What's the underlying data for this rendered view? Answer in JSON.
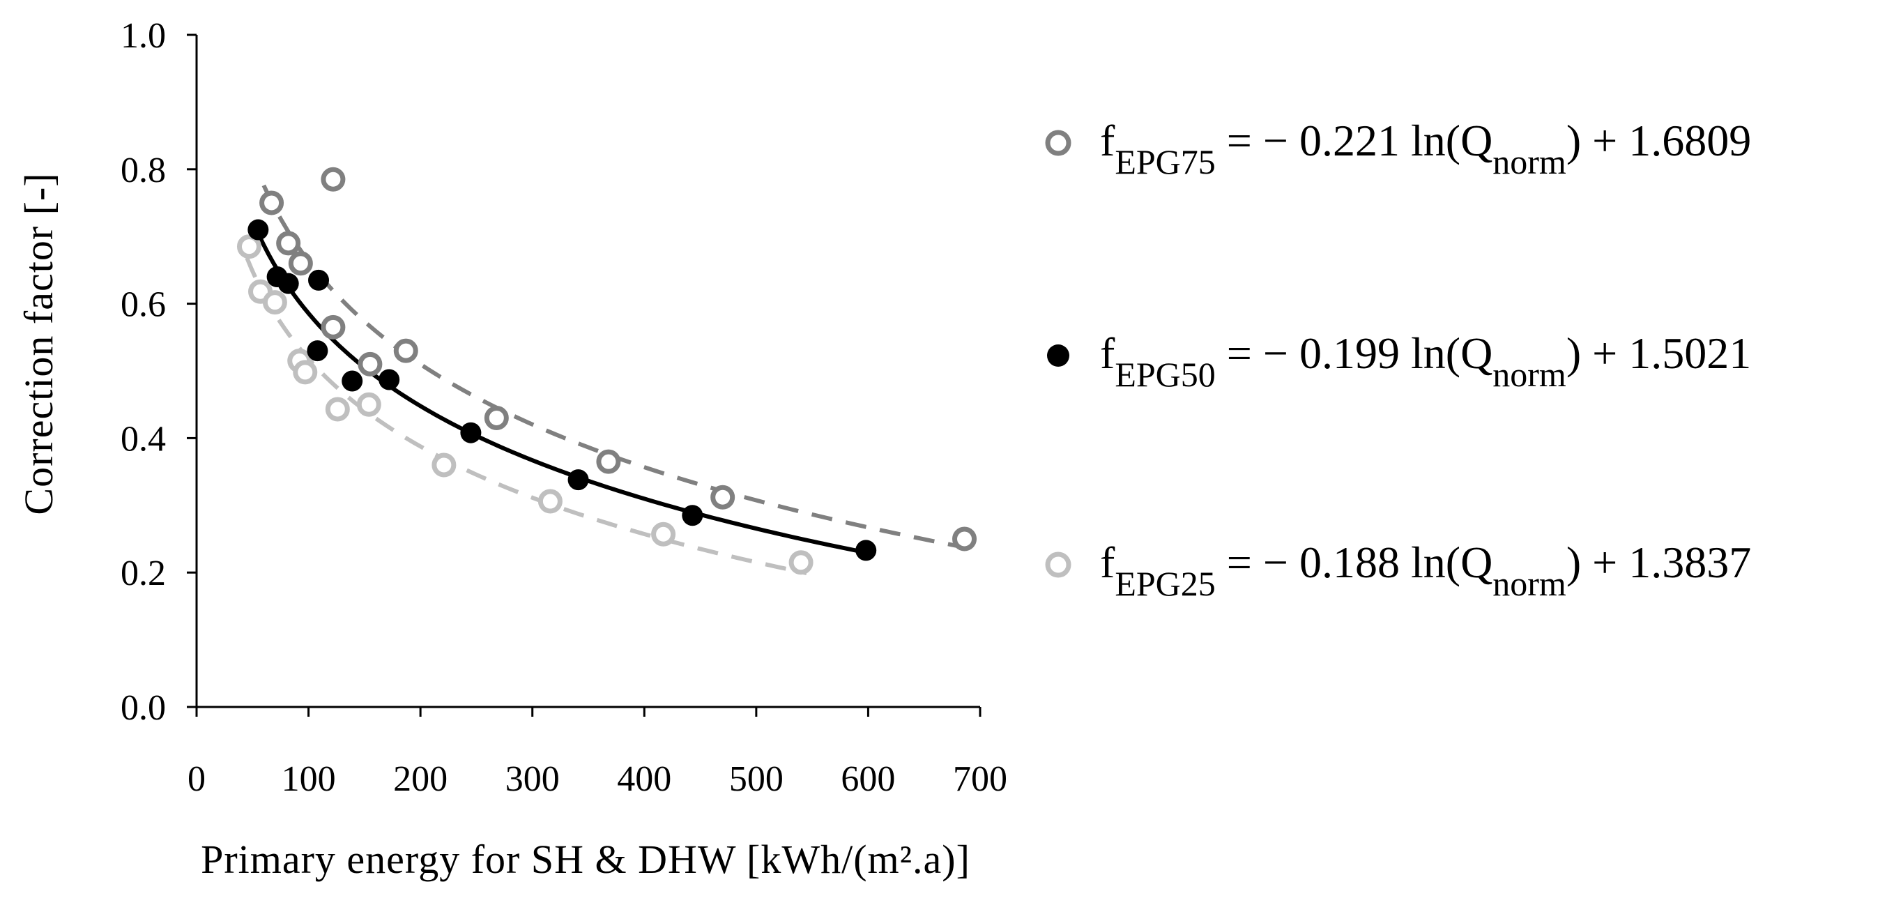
{
  "chart_data": {
    "type": "scatter",
    "xlabel": "Primary energy for SH & DHW [kWh/(m².a)]",
    "ylabel": "Correction factor [-]",
    "xlim": [
      0,
      700
    ],
    "ylim": [
      0,
      1.0
    ],
    "x_ticks": [
      "0",
      "100",
      "200",
      "300",
      "400",
      "500",
      "600",
      "700"
    ],
    "y_ticks": [
      "0.0",
      "0.2",
      "0.4",
      "0.6",
      "0.8",
      "1.0"
    ],
    "grid": false,
    "legend_position": "right",
    "series": [
      {
        "name": "EPG75",
        "marker": "open-circle",
        "color": "#808080",
        "line_style": "dashed",
        "fit": {
          "a": -0.221,
          "b": 1.6809,
          "x_range": [
            60,
            690
          ]
        },
        "legend": {
          "prefix": "f",
          "subscript": "EPG75",
          "mid": " = − 0.221 ln(Q",
          "mid_sub": "norm",
          "suffix": ") + 1.6809"
        },
        "points": [
          [
            67,
            0.75
          ],
          [
            122,
            0.785
          ],
          [
            82,
            0.69
          ],
          [
            93,
            0.66
          ],
          [
            122,
            0.565
          ],
          [
            155,
            0.51
          ],
          [
            187,
            0.53
          ],
          [
            268,
            0.43
          ],
          [
            368,
            0.365
          ],
          [
            470,
            0.312
          ],
          [
            686,
            0.25
          ]
        ]
      },
      {
        "name": "EPG50",
        "marker": "filled-circle",
        "color": "#000000",
        "line_style": "solid",
        "fit": {
          "a": -0.199,
          "b": 1.5021,
          "x_range": [
            55,
            600
          ]
        },
        "legend": {
          "prefix": "f",
          "subscript": "EPG50",
          "mid": " = − 0.199 ln(Q",
          "mid_sub": "norm",
          "suffix": ") + 1.5021"
        },
        "points": [
          [
            55,
            0.71
          ],
          [
            72,
            0.64
          ],
          [
            82,
            0.63
          ],
          [
            109,
            0.635
          ],
          [
            108,
            0.53
          ],
          [
            139,
            0.485
          ],
          [
            172,
            0.487
          ],
          [
            245,
            0.408
          ],
          [
            341,
            0.338
          ],
          [
            443,
            0.285
          ],
          [
            598,
            0.233
          ]
        ]
      },
      {
        "name": "EPG25",
        "marker": "open-circle",
        "color": "#bfbfbf",
        "line_style": "dashed",
        "fit": {
          "a": -0.188,
          "b": 1.3837,
          "x_range": [
            45,
            545
          ]
        },
        "legend": {
          "prefix": "f",
          "subscript": "EPG25",
          "mid": " = − 0.188 ln(Q",
          "mid_sub": "norm",
          "suffix": ") + 1.3837"
        },
        "points": [
          [
            47,
            0.685
          ],
          [
            57,
            0.618
          ],
          [
            70,
            0.602
          ],
          [
            92,
            0.515
          ],
          [
            97,
            0.498
          ],
          [
            126,
            0.443
          ],
          [
            154,
            0.45
          ],
          [
            221,
            0.36
          ],
          [
            316,
            0.306
          ],
          [
            417,
            0.257
          ],
          [
            540,
            0.215
          ]
        ]
      }
    ]
  }
}
